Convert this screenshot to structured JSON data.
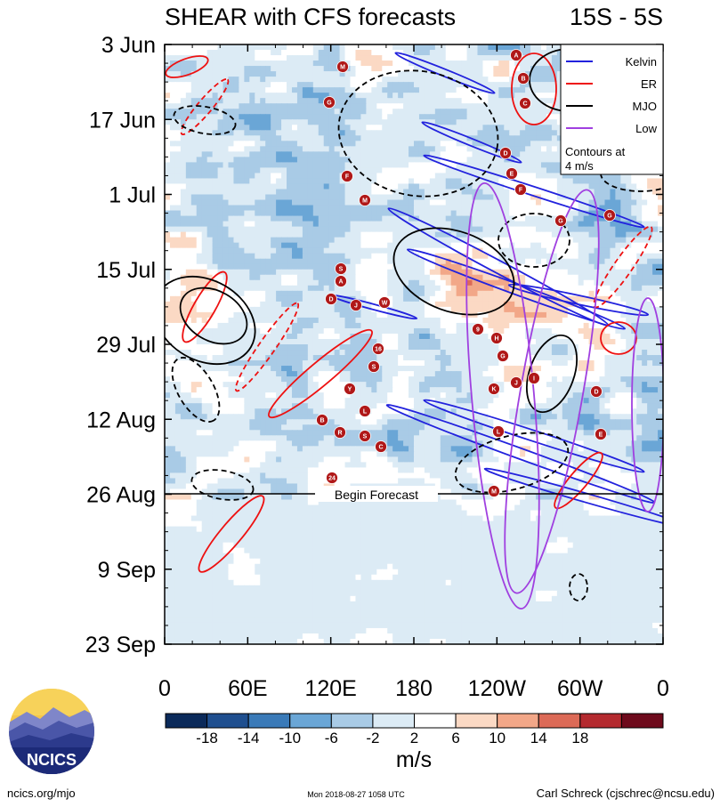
{
  "header": {
    "title": "SHEAR with CFS forecasts",
    "region": "15S - 5S"
  },
  "chart_data": {
    "type": "heatmap",
    "title": "SHEAR with CFS forecasts",
    "subtitle": "15S - 5S",
    "y_ticks": [
      "3 Jun",
      "17 Jun",
      "1 Jul",
      "15 Jul",
      "29 Jul",
      "12 Aug",
      "26 Aug",
      "9 Sep",
      "23 Sep"
    ],
    "x_ticks": [
      "0",
      "60E",
      "120E",
      "180",
      "120W",
      "60W",
      "0"
    ],
    "x_range_lon": [
      0,
      360
    ],
    "y_range": [
      "3 Jun",
      "23 Sep"
    ],
    "colorbar": {
      "labels": [
        "-18",
        "-14",
        "-10",
        "-6",
        "-2",
        "2",
        "6",
        "10",
        "14",
        "18"
      ],
      "colors": [
        "#0b2a5a",
        "#1f4f8f",
        "#3a7ab8",
        "#6aa6d6",
        "#a9cbe6",
        "#dcebf5",
        "#ffffff",
        "#fbd9c4",
        "#f2a788",
        "#dc6a57",
        "#b42a2f",
        "#6e0a1c"
      ],
      "units": "m/s"
    },
    "forecast_start": "26 Aug",
    "forecast_label": "Begin Forecast",
    "legend": {
      "items": [
        {
          "name": "Kelvin",
          "color": "#2222dd"
        },
        {
          "name": "ER",
          "color": "#ee1111"
        },
        {
          "name": "MJO",
          "color": "#000000"
        },
        {
          "name": "Low",
          "color": "#a040e0"
        }
      ],
      "note": "Contours at 4 m/s",
      "position": "top-right"
    },
    "storms": [
      "M",
      "G",
      "F",
      "M",
      "S",
      "A",
      "D",
      "J",
      "W",
      "16",
      "S",
      "Y",
      "L",
      "B",
      "R",
      "S",
      "C",
      "24",
      "A",
      "B",
      "C",
      "D",
      "E",
      "F",
      "G",
      "G",
      "H",
      "9",
      "G",
      "J",
      "I",
      "K",
      "L",
      "D",
      "E",
      "M"
    ]
  },
  "footer": {
    "logo_text": "NCICS",
    "site": "ncics.org/mjo",
    "timestamp": "Mon 2018-08-27 1058 UTC",
    "author": "Carl Schreck (cjschrec@ncsu.edu)"
  }
}
